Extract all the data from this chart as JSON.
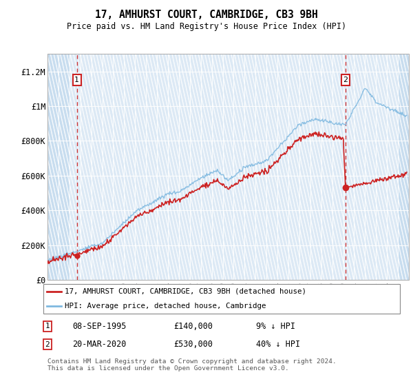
{
  "title": "17, AMHURST COURT, CAMBRIDGE, CB3 9BH",
  "subtitle": "Price paid vs. HM Land Registry's House Price Index (HPI)",
  "ylabel_ticks": [
    "£0",
    "£200K",
    "£400K",
    "£600K",
    "£800K",
    "£1M",
    "£1.2M"
  ],
  "ytick_values": [
    0,
    200000,
    400000,
    600000,
    800000,
    1000000,
    1200000
  ],
  "ylim": [
    0,
    1300000
  ],
  "xlim_start": 1993.0,
  "xlim_end": 2026.0,
  "bg_color": "#dce9f5",
  "hatch_color": "#c8ddef",
  "grid_color": "#ffffff",
  "hpi_color": "#7fb9e0",
  "price_color": "#cc2222",
  "sale1_year": 1995.69,
  "sale1_price": 140000,
  "sale2_year": 2020.22,
  "sale2_price": 530000,
  "legend_line1": "17, AMHURST COURT, CAMBRIDGE, CB3 9BH (detached house)",
  "legend_line2": "HPI: Average price, detached house, Cambridge",
  "note1_date": "08-SEP-1995",
  "note1_price": "£140,000",
  "note1_hpi": "9% ↓ HPI",
  "note2_date": "20-MAR-2020",
  "note2_price": "£530,000",
  "note2_hpi": "40% ↓ HPI",
  "footer": "Contains HM Land Registry data © Crown copyright and database right 2024.\nThis data is licensed under the Open Government Licence v3.0.",
  "x_tick_years": [
    1993,
    1994,
    1995,
    1996,
    1997,
    1998,
    1999,
    2000,
    2001,
    2002,
    2003,
    2004,
    2005,
    2006,
    2007,
    2008,
    2009,
    2010,
    2011,
    2012,
    2013,
    2014,
    2015,
    2016,
    2017,
    2018,
    2019,
    2020,
    2021,
    2022,
    2023,
    2024,
    2025
  ]
}
